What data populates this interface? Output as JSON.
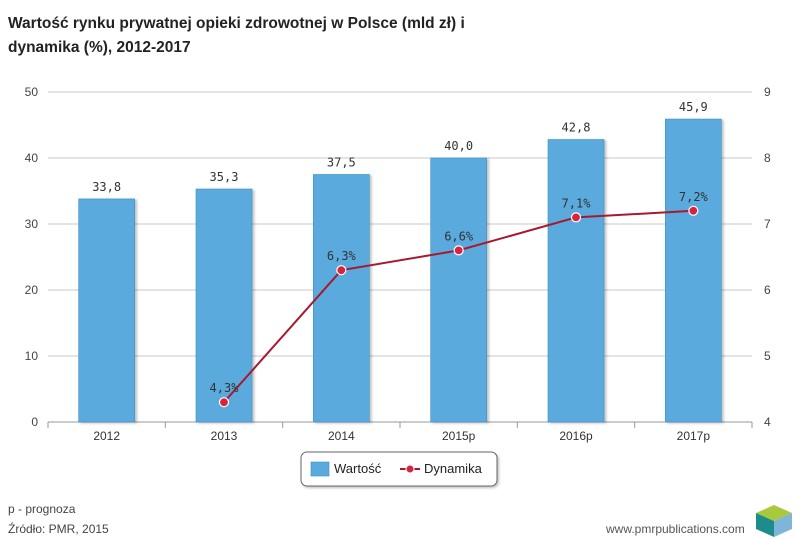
{
  "chart_data": {
    "type": "bar+line",
    "title_line1": "Wartość rynku prywatnej opieki zdrowotnej w Polsce (mld zł) i",
    "title_line2": "dynamika (%), 2012-2017",
    "categories": [
      "2012",
      "2013",
      "2014",
      "2015p",
      "2016p",
      "2017p"
    ],
    "series": [
      {
        "name": "Wartość",
        "type": "bar",
        "axis": "left",
        "values": [
          33.8,
          35.3,
          37.5,
          40.0,
          42.8,
          45.9
        ],
        "labels": [
          "33,8",
          "35,3",
          "37,5",
          "40,0",
          "42,8",
          "45,9"
        ],
        "color": "#5aaade"
      },
      {
        "name": "Dynamika",
        "type": "line",
        "axis": "right",
        "values": [
          null,
          4.3,
          6.3,
          6.6,
          7.1,
          7.2
        ],
        "labels": [
          null,
          "4,3%",
          "6,3%",
          "6,6%",
          "7,1%",
          "7,2%"
        ],
        "color": "#a8192d"
      }
    ],
    "y_left": {
      "min": 0,
      "max": 50,
      "ticks": [
        "0",
        "10",
        "20",
        "30",
        "40",
        "50"
      ]
    },
    "y_right": {
      "min": 4,
      "max": 9,
      "ticks": [
        "4",
        "5",
        "6",
        "7",
        "8",
        "9"
      ]
    },
    "grid": true,
    "legend": "bottom-center"
  },
  "footer": {
    "footnote": "p - prognoza",
    "source": "Źródło: PMR, 2015",
    "website": "www.pmrpublications.com"
  },
  "colors": {
    "bar": "#5aaade",
    "bar_edge": "#3d8fc6",
    "line": "#a8192d",
    "marker": "#d62440",
    "grid": "#c8c8c8"
  }
}
